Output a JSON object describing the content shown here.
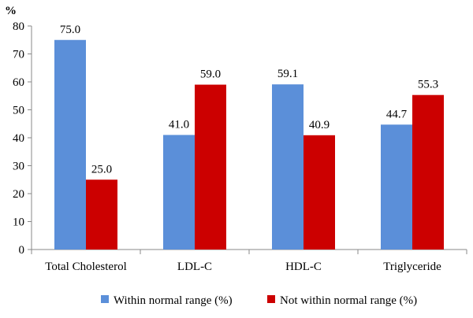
{
  "chart_data": {
    "type": "bar",
    "ylabel": "%",
    "ylim": [
      0,
      80
    ],
    "yticks": [
      "0",
      "10",
      "20",
      "30",
      "40",
      "50",
      "60",
      "70",
      "80"
    ],
    "categories": [
      "Total Cholesterol",
      "LDL-C",
      "HDL-C",
      "Triglyceride"
    ],
    "series": [
      {
        "name": "Within normal range (%)",
        "color": "#5b8fd9",
        "values": [
          75.0,
          41.0,
          59.1,
          44.7
        ],
        "labels": [
          "75.0",
          "41.0",
          "59.1",
          "44.7"
        ]
      },
      {
        "name": "Not within normal range (%)",
        "color": "#cc0000",
        "values": [
          25.0,
          59.0,
          40.9,
          55.3
        ],
        "labels": [
          "25.0",
          "59.0",
          "40.9",
          "55.3"
        ]
      }
    ],
    "grid": false,
    "legend_position": "bottom"
  }
}
